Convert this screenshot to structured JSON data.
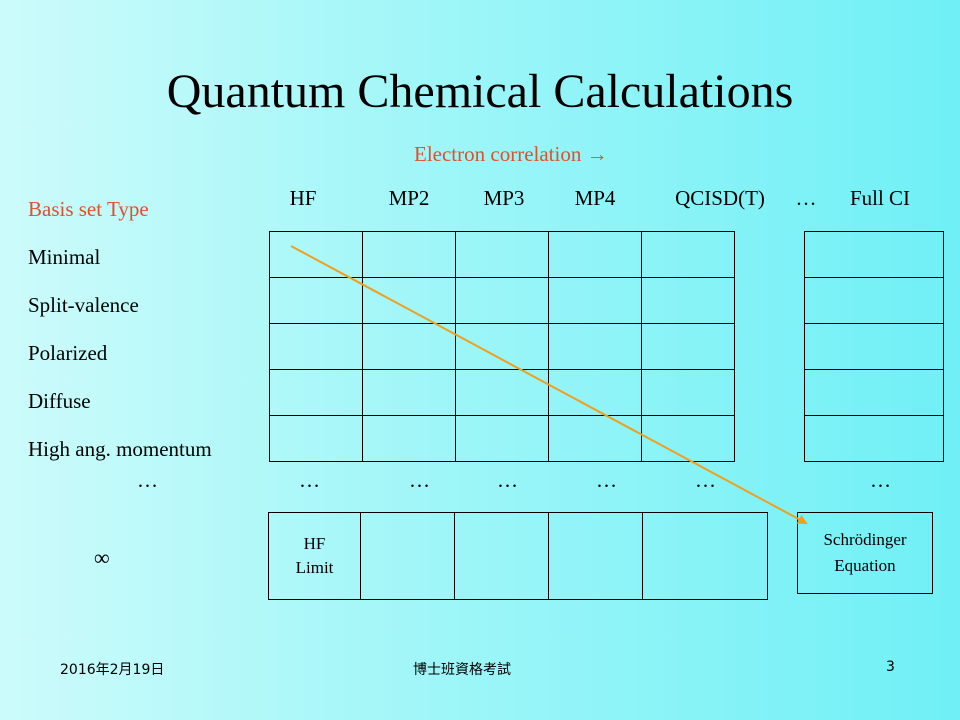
{
  "slide": {
    "title": "Quantum Chemical Calculations",
    "electron_correlation_label": "Electron correlation →",
    "basis_set_label": "Basis set Type",
    "methods": [
      "HF",
      "MP2",
      "MP3",
      "MP4",
      "QCISD(T)",
      "…",
      "Full CI"
    ],
    "basis_sets": [
      "Minimal",
      "Split-valence",
      "Polarized",
      "Diffuse",
      "High ang. momentum"
    ],
    "ellipsis": "…",
    "infinity_label": "∞",
    "hf_limit": [
      "HF",
      "Limit"
    ],
    "schrodinger": [
      "Schrödinger",
      "Equation"
    ],
    "colors": {
      "accent_text": "#e0502a",
      "arrow": "#f0a020"
    }
  },
  "footer": {
    "date": "2016年2月19日",
    "center": "博士班資格考試",
    "page_number": "3"
  }
}
